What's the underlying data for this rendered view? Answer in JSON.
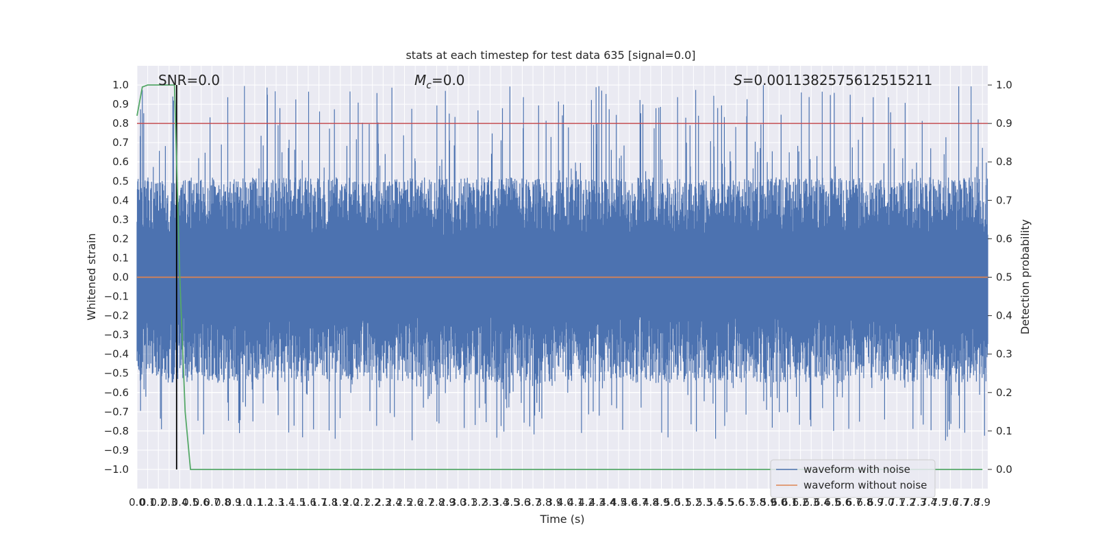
{
  "chart_data": {
    "type": "line",
    "title": "stats at each timestep for test data 635 [signal=0.0]",
    "xlabel": "Time (s)",
    "ylabel": "Whitened strain",
    "ylabel_right": "Detection probability",
    "xlim": [
      0.0,
      7.95
    ],
    "ylim": [
      -1.1,
      1.1
    ],
    "ylim_right": [
      -0.05,
      1.05
    ],
    "grid": true,
    "x_ticks": [
      "0.0",
      "0.1",
      "0.2",
      "0.3",
      "0.4",
      "0.5",
      "0.6",
      "0.7",
      "0.8",
      "0.9",
      "1.0",
      "1.1",
      "1.2",
      "1.3",
      "1.4",
      "1.5",
      "1.6",
      "1.7",
      "1.8",
      "1.9",
      "2.0",
      "2.1",
      "2.2",
      "2.3",
      "2.4",
      "2.5",
      "2.6",
      "2.7",
      "2.8",
      "2.9",
      "3.0",
      "3.1",
      "3.2",
      "3.3",
      "3.4",
      "3.5",
      "3.6",
      "3.7",
      "3.8",
      "3.9",
      "4.0",
      "4.1",
      "4.2",
      "4.3",
      "4.4",
      "4.5",
      "4.6",
      "4.7",
      "4.8",
      "4.9",
      "5.0",
      "5.1",
      "5.2",
      "5.3",
      "5.4",
      "5.5",
      "5.6",
      "5.7",
      "5.8",
      "5.9",
      "6.0",
      "6.1",
      "6.2",
      "6.3",
      "6.4",
      "6.5",
      "6.6",
      "6.7",
      "6.8",
      "6.9",
      "7.0",
      "7.1",
      "7.2",
      "7.3",
      "7.4",
      "7.5",
      "7.6",
      "7.7",
      "7.8",
      "7.9"
    ],
    "y_ticks": [
      "1.0",
      "0.9",
      "0.8",
      "0.7",
      "0.6",
      "0.5",
      "0.4",
      "0.3",
      "0.2",
      "0.1",
      "0.0",
      "−0.1",
      "−0.2",
      "−0.3",
      "−0.4",
      "−0.5",
      "−0.6",
      "−0.7",
      "−0.8",
      "−0.9",
      "−1.0"
    ],
    "y_ticks_right": [
      "1.0",
      "0.9",
      "0.8",
      "0.7",
      "0.6",
      "0.5",
      "0.4",
      "0.3",
      "0.2",
      "0.1",
      "0.0"
    ],
    "annotations": {
      "snr": "SNR=0.0",
      "mc": "=0.0",
      "mc_symbol": "M",
      "mc_sub": "c",
      "s": "=0.0011382575612515211",
      "s_symbol": "S"
    },
    "series": [
      {
        "name": "waveform with noise",
        "color": "#4c72b0",
        "kind": "noise",
        "envelope_max_approx": 1.0,
        "envelope_min_approx": -0.91
      },
      {
        "name": "waveform without noise",
        "color": "#dd8452",
        "x": [
          0.0,
          7.95
        ],
        "y": [
          0.0,
          0.0
        ]
      },
      {
        "color": "#55a868",
        "axis": "right",
        "x": [
          0.0,
          0.05,
          0.1,
          0.15,
          0.2,
          0.25,
          0.3,
          0.35,
          0.4,
          0.45,
          0.5,
          7.9
        ],
        "y": [
          0.92,
          0.995,
          1.0,
          1.0,
          1.0,
          1.0,
          1.0,
          1.0,
          0.5,
          0.15,
          0.0,
          0.0
        ]
      }
    ],
    "threshold": {
      "axis": "right",
      "value": 0.9,
      "color": "#c44e52"
    },
    "vertical_marker": {
      "x": 0.37,
      "y_from": -1.0,
      "y_to": 1.0,
      "color": "#000000"
    },
    "legend": {
      "placement": "lower-right",
      "entries": [
        "waveform with noise",
        "waveform without noise"
      ]
    }
  }
}
